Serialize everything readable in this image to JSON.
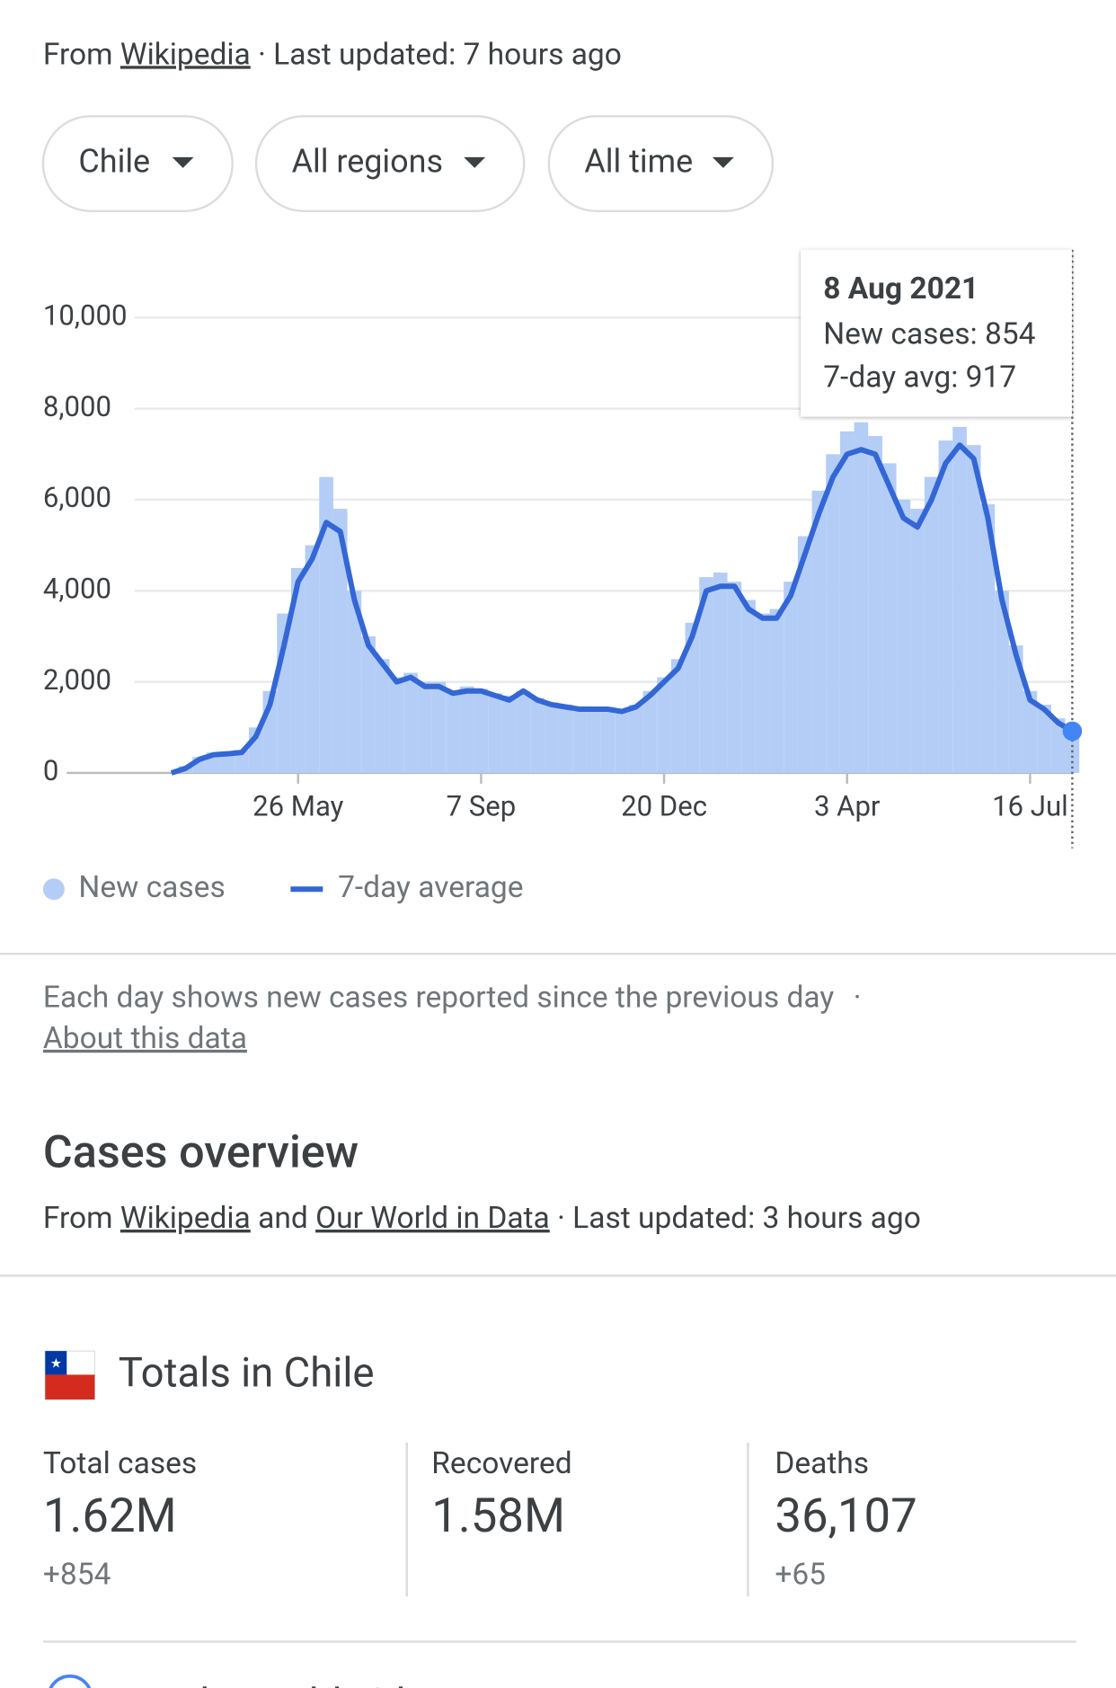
{
  "source": {
    "prefix": "From",
    "link": "Wikipedia",
    "updated": "· Last updated: 7 hours ago"
  },
  "filters": [
    "Chile",
    "All regions",
    "All time"
  ],
  "chart_data": {
    "type": "bar-line",
    "categories": [
      null,
      null,
      null,
      null,
      null,
      null,
      null,
      null,
      null,
      "26 May",
      null,
      null,
      null,
      null,
      null,
      null,
      null,
      null,
      null,
      null,
      null,
      null,
      "7 Sep",
      null,
      null,
      null,
      null,
      null,
      null,
      null,
      null,
      null,
      null,
      null,
      null,
      "20 Dec",
      null,
      null,
      null,
      null,
      null,
      null,
      null,
      null,
      null,
      null,
      null,
      null,
      "3 Apr",
      null,
      null,
      null,
      null,
      null,
      null,
      null,
      null,
      null,
      null,
      null,
      null,
      "16 Jul",
      null,
      null,
      null
    ],
    "series": [
      {
        "name": "New cases",
        "color": "#b4cdf6",
        "values": [
          0,
          150,
          350,
          450,
          430,
          500,
          1000,
          1800,
          3500,
          4500,
          5000,
          6500,
          5800,
          4000,
          3000,
          2500,
          2100,
          2200,
          2000,
          2000,
          1800,
          1900,
          1850,
          1750,
          1700,
          1800,
          1650,
          1550,
          1500,
          1450,
          1400,
          1450,
          1400,
          1500,
          1800,
          2100,
          2500,
          3300,
          4300,
          4400,
          4200,
          3800,
          3500,
          3600,
          4200,
          5200,
          6200,
          7000,
          7500,
          7700,
          7400,
          6800,
          6000,
          5800,
          6500,
          7300,
          7600,
          7200,
          5900,
          4000,
          2800,
          1800,
          1500,
          1200,
          854
        ]
      },
      {
        "name": "7-day average",
        "color": "#3367d6",
        "values": [
          0,
          100,
          300,
          400,
          420,
          450,
          800,
          1500,
          2800,
          4200,
          4700,
          5500,
          5300,
          3800,
          2800,
          2400,
          2000,
          2100,
          1900,
          1900,
          1750,
          1800,
          1800,
          1700,
          1600,
          1800,
          1600,
          1500,
          1450,
          1400,
          1400,
          1400,
          1350,
          1450,
          1700,
          2000,
          2300,
          3000,
          4000,
          4100,
          4100,
          3600,
          3400,
          3400,
          3900,
          4800,
          5700,
          6500,
          7000,
          7100,
          7000,
          6300,
          5600,
          5400,
          6000,
          6800,
          7200,
          6900,
          5600,
          3800,
          2600,
          1600,
          1400,
          1100,
          917
        ]
      }
    ],
    "ylim": [
      0,
      10000
    ],
    "yticks": [
      0,
      {
        "value": 2000,
        "label": "2,000"
      },
      {
        "value": 4000,
        "label": "4,000"
      },
      {
        "value": 6000,
        "label": "6,000"
      },
      {
        "value": 8000,
        "label": "8,000"
      },
      {
        "value": 10000,
        "label": "10,000"
      }
    ],
    "grid": true,
    "tooltip": {
      "title": "8 Aug 2021",
      "lines": [
        "New cases: 854",
        "7-day avg: 917"
      ]
    }
  },
  "note": {
    "text": "Each day shows new cases reported since the previous day",
    "separator": "·",
    "link": "About this data"
  },
  "overview": {
    "title": "Cases overview",
    "prefix": "From",
    "link1": "Wikipedia",
    "and": "and",
    "link2": "Our World in Data",
    "updated": "· Last updated: 3 hours ago"
  },
  "totals": {
    "title": "Totals in Chile",
    "stats": [
      {
        "label": "Total cases",
        "value": "1.62M",
        "change": "+854"
      },
      {
        "label": "Recovered",
        "value": "1.58M"
      },
      {
        "label": "Deaths",
        "value": "36,107",
        "change": "+65"
      }
    ]
  },
  "next": "Totals worldwide"
}
